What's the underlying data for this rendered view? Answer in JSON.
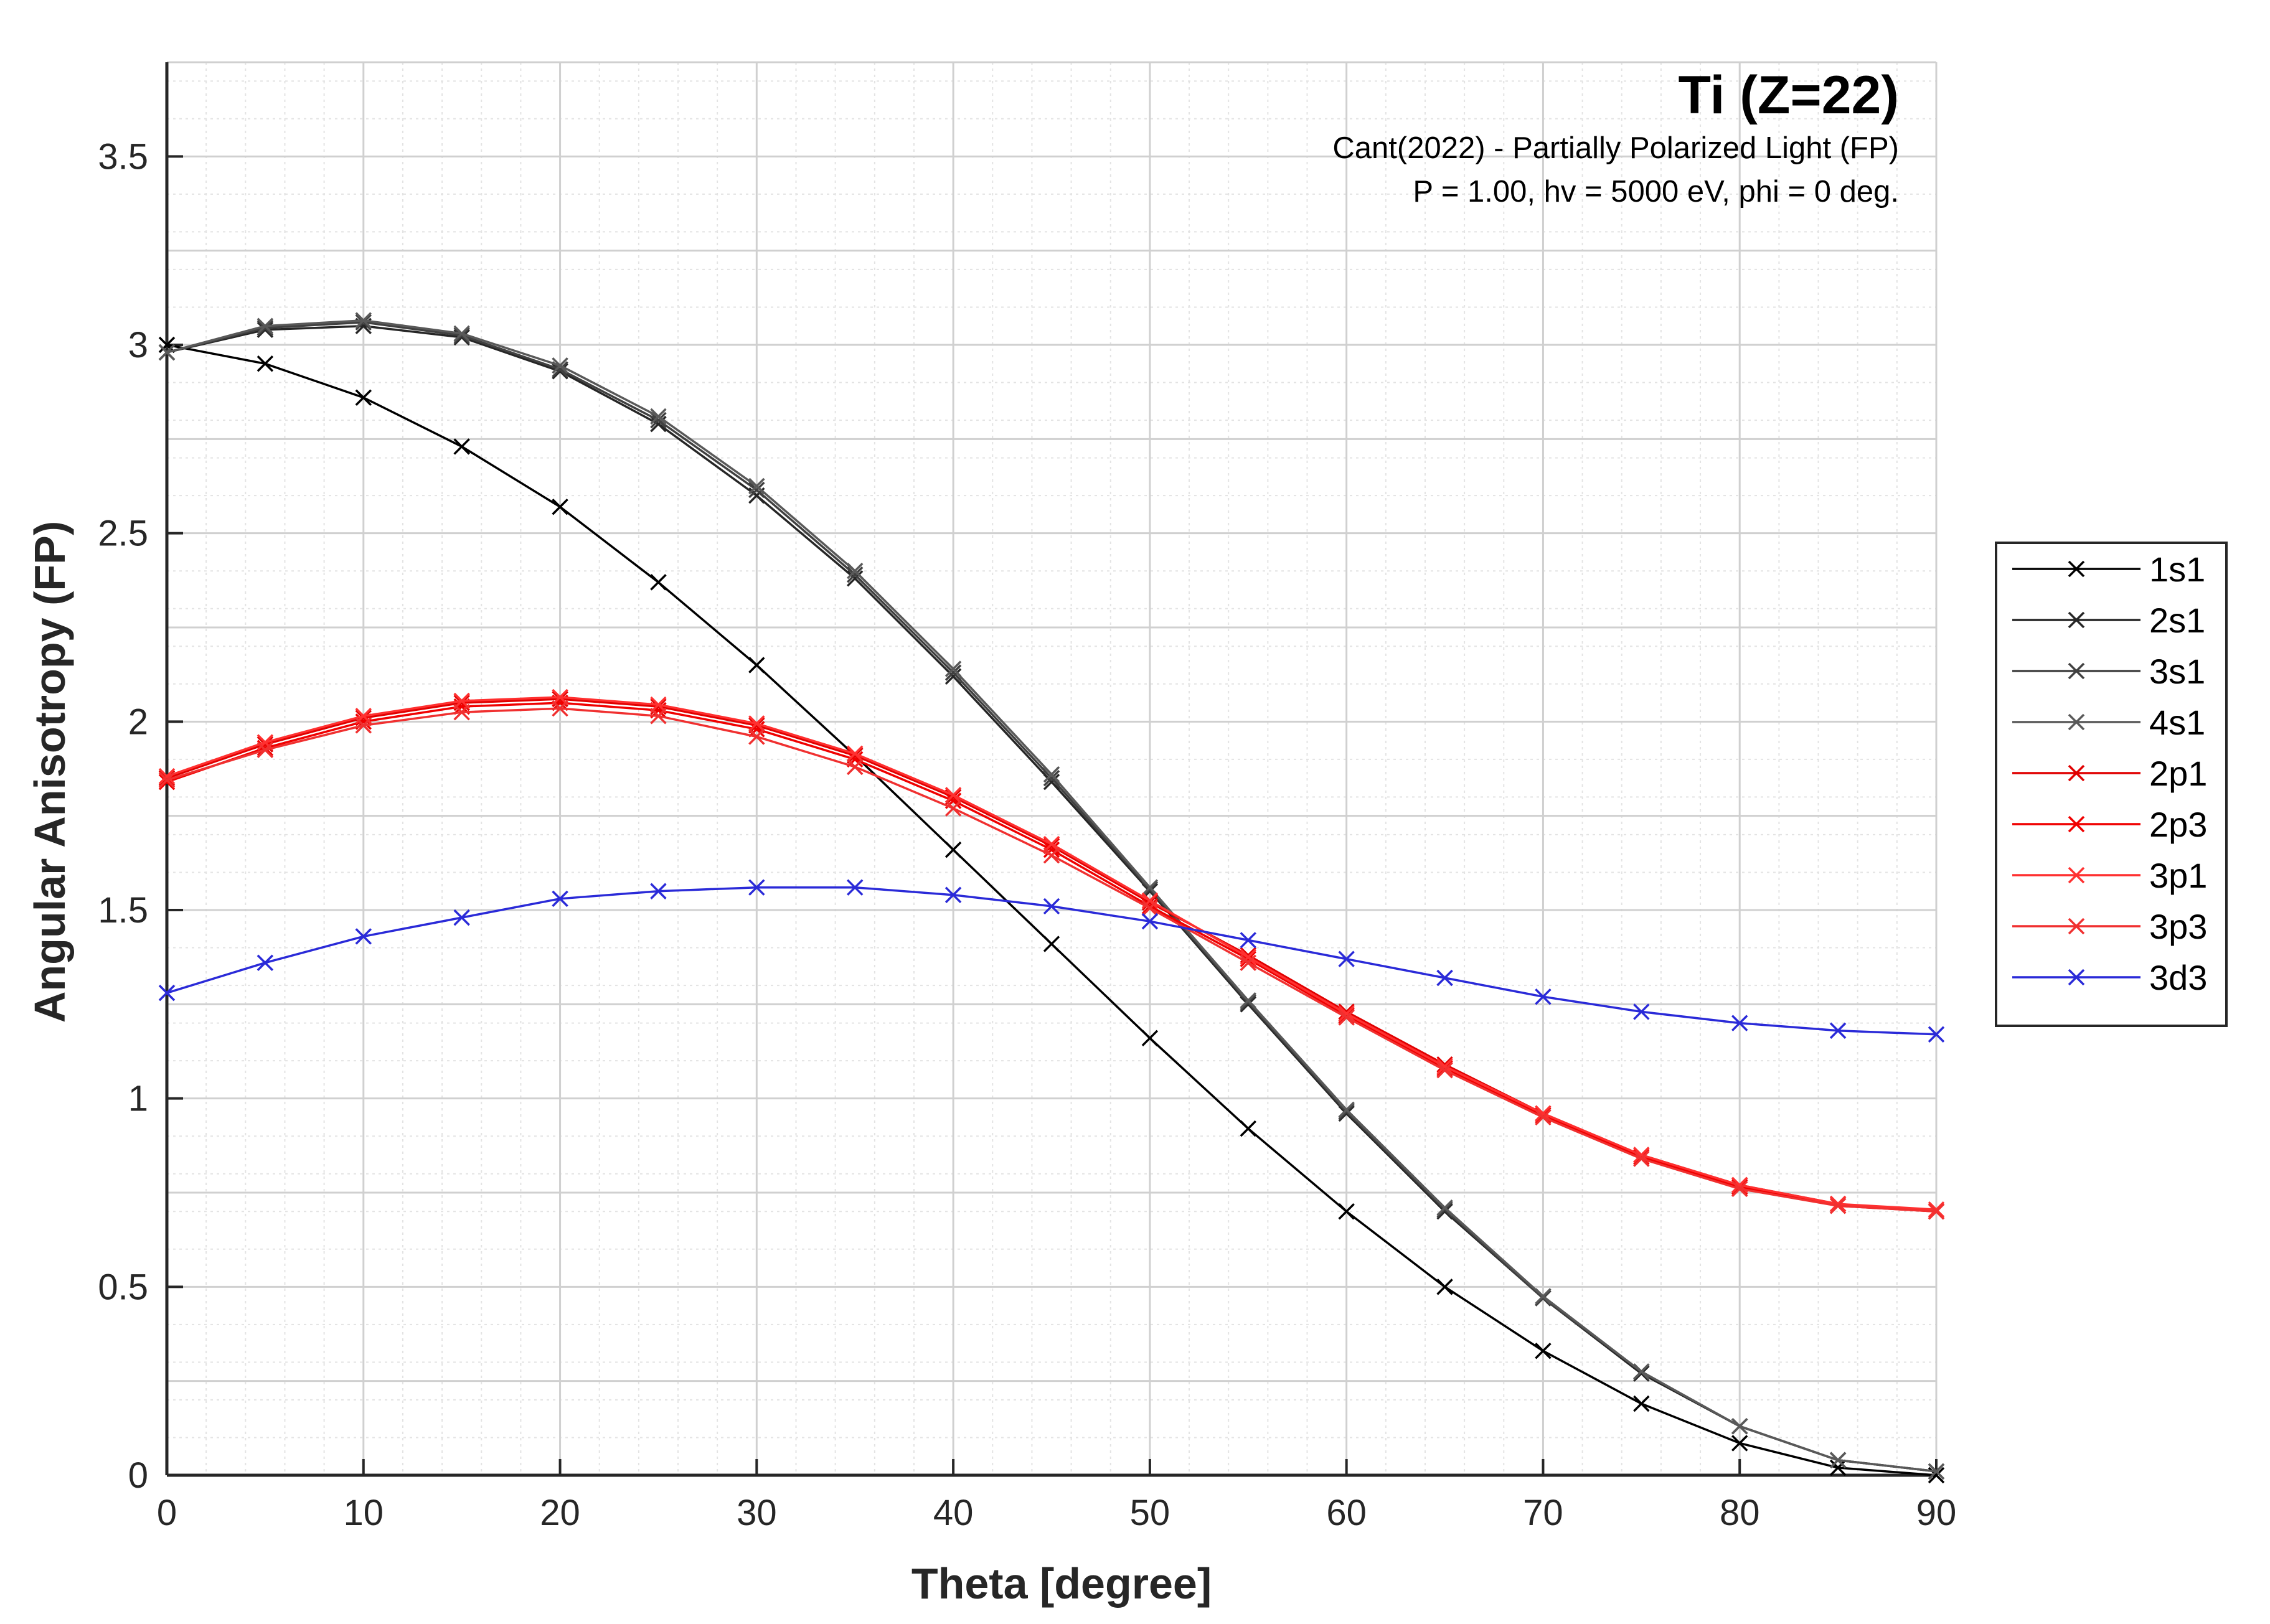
{
  "chart_data": {
    "type": "line",
    "title": "Ti (Z=22)",
    "subtitle_lines": [
      "Cant(2022) - Partially Polarized Light (FP)",
      "P = 1.00, hv = 5000 eV, phi = 0 deg."
    ],
    "xlabel": "Theta [degree]",
    "ylabel": "Angular Anisotropy (FP)",
    "xlim": [
      0,
      90
    ],
    "ylim": [
      0,
      3.75
    ],
    "xticks": [
      0,
      10,
      20,
      30,
      40,
      50,
      60,
      70,
      80,
      90
    ],
    "yticks": [
      0,
      0.5,
      1,
      1.5,
      2,
      2.5,
      3,
      3.5
    ],
    "xtick_labels": [
      "0",
      "10",
      "20",
      "30",
      "40",
      "50",
      "60",
      "70",
      "80",
      "90"
    ],
    "ytick_labels": [
      "0",
      "0.5",
      "1",
      "1.5",
      "2",
      "2.5",
      "3",
      "3.5"
    ],
    "grid": true,
    "minor_grid": true,
    "legend_position": "outside-right",
    "marker": "x",
    "x": [
      0,
      5,
      10,
      15,
      20,
      25,
      30,
      35,
      40,
      45,
      50,
      55,
      60,
      65,
      70,
      75,
      80,
      85,
      90
    ],
    "series": [
      {
        "name": "1s1",
        "color": "#000000",
        "values": [
          3.0,
          2.95,
          2.86,
          2.73,
          2.57,
          2.37,
          2.15,
          1.91,
          1.66,
          1.41,
          1.16,
          0.92,
          0.7,
          0.5,
          0.33,
          0.19,
          0.085,
          0.02,
          0.0
        ]
      },
      {
        "name": "2s1",
        "color": "#262626",
        "values": [
          2.98,
          3.04,
          3.05,
          3.02,
          2.93,
          2.79,
          2.6,
          2.38,
          2.12,
          1.84,
          1.55,
          1.25,
          0.96,
          0.7,
          0.47,
          0.27,
          0.13,
          0.04,
          0.01
        ]
      },
      {
        "name": "3s1",
        "color": "#404040",
        "values": [
          2.98,
          3.045,
          3.06,
          3.025,
          2.935,
          2.8,
          2.615,
          2.39,
          2.13,
          1.85,
          1.555,
          1.255,
          0.965,
          0.705,
          0.47,
          0.275,
          0.13,
          0.04,
          0.01
        ]
      },
      {
        "name": "4s1",
        "color": "#595959",
        "values": [
          2.98,
          3.05,
          3.065,
          3.03,
          2.945,
          2.81,
          2.625,
          2.4,
          2.14,
          1.86,
          1.56,
          1.26,
          0.97,
          0.71,
          0.475,
          0.275,
          0.13,
          0.04,
          0.01
        ]
      },
      {
        "name": "2p1",
        "color": "#e00000",
        "values": [
          1.85,
          1.94,
          2.01,
          2.05,
          2.06,
          2.04,
          1.99,
          1.91,
          1.8,
          1.67,
          1.52,
          1.38,
          1.23,
          1.09,
          0.96,
          0.85,
          0.77,
          0.72,
          0.7
        ]
      },
      {
        "name": "2p3",
        "color": "#f00000",
        "values": [
          1.84,
          1.93,
          2.0,
          2.04,
          2.05,
          2.03,
          1.98,
          1.9,
          1.79,
          1.66,
          1.51,
          1.37,
          1.22,
          1.08,
          0.955,
          0.845,
          0.765,
          0.715,
          0.7
        ]
      },
      {
        "name": "3p1",
        "color": "#ff3030",
        "values": [
          1.855,
          1.945,
          2.015,
          2.055,
          2.065,
          2.045,
          1.995,
          1.915,
          1.805,
          1.675,
          1.525,
          1.375,
          1.225,
          1.085,
          0.96,
          0.85,
          0.77,
          0.72,
          0.705
        ]
      },
      {
        "name": "3p3",
        "color": "#f03030",
        "values": [
          1.845,
          1.925,
          1.99,
          2.025,
          2.035,
          2.015,
          1.96,
          1.88,
          1.77,
          1.645,
          1.505,
          1.36,
          1.215,
          1.075,
          0.95,
          0.84,
          0.76,
          0.715,
          0.7
        ]
      },
      {
        "name": "3d3",
        "color": "#2a2ad8",
        "values": [
          1.28,
          1.36,
          1.43,
          1.48,
          1.53,
          1.55,
          1.56,
          1.56,
          1.54,
          1.51,
          1.47,
          1.42,
          1.37,
          1.32,
          1.27,
          1.23,
          1.2,
          1.18,
          1.17
        ]
      }
    ]
  }
}
